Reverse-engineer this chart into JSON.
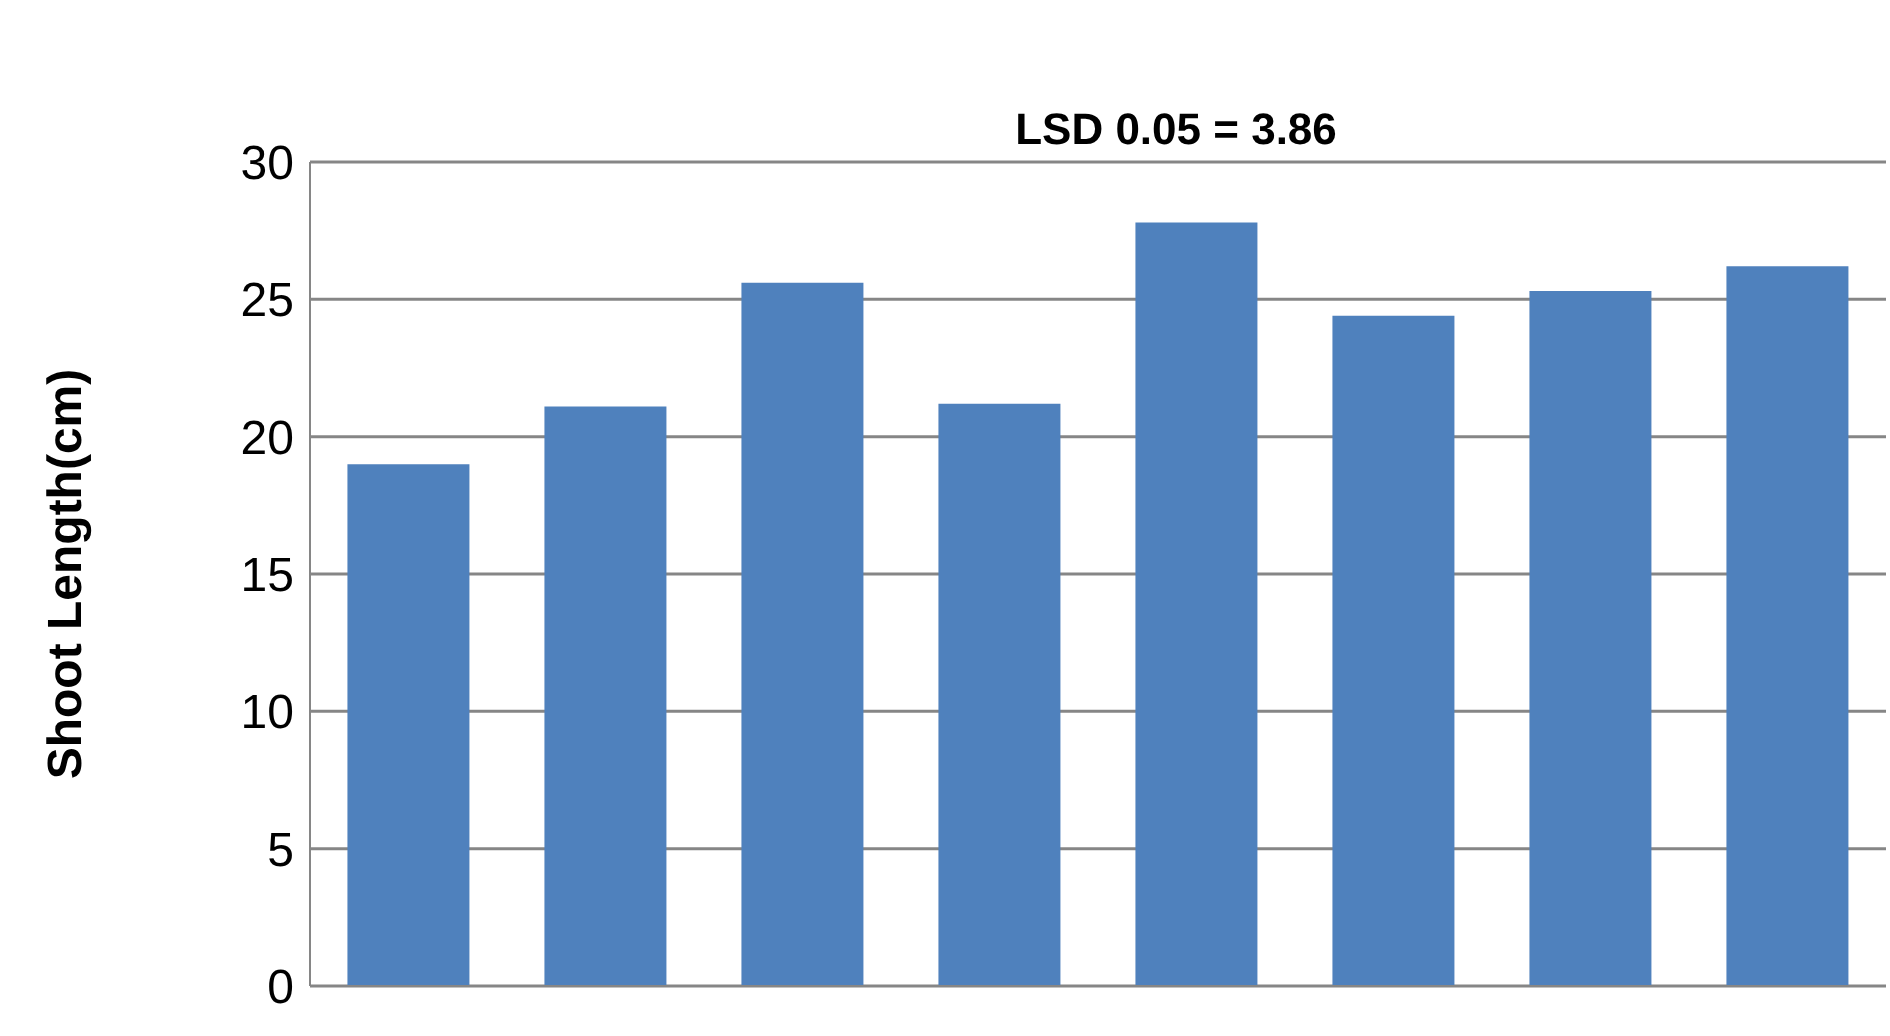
{
  "chart_data": {
    "type": "bar",
    "title": "LSD 0.05 = 3.86",
    "ylabel": "Shoot Length(cm)",
    "categories": [
      null,
      null,
      null,
      null,
      null,
      null,
      null,
      null
    ],
    "values": [
      19.0,
      21.1,
      25.6,
      21.2,
      27.8,
      24.4,
      25.3,
      26.2
    ],
    "color": "#4f81bd",
    "ylim": [
      0,
      30
    ],
    "yticks": [
      0,
      5,
      10,
      15,
      20,
      25,
      30
    ],
    "grid": "y",
    "legend": false,
    "tick_labels": "y"
  }
}
